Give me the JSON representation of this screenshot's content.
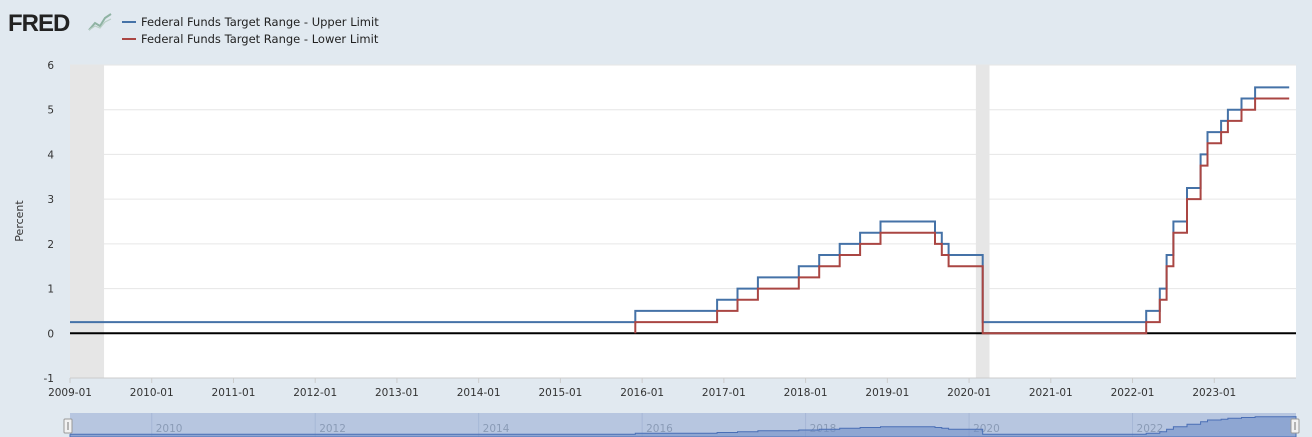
{
  "app": {
    "logo": "FRED",
    "logo_icon": "line-chart-icon"
  },
  "chart_data": {
    "type": "line",
    "title": "",
    "xlabel": "",
    "ylabel": "Percent",
    "ylim": [
      -1,
      6
    ],
    "yticks": [
      -1,
      0,
      1,
      2,
      3,
      4,
      5,
      6
    ],
    "xlim": [
      "2009-01",
      "2023-12"
    ],
    "xticks": [
      "2009-01",
      "2010-01",
      "2011-01",
      "2012-01",
      "2013-01",
      "2014-01",
      "2015-01",
      "2016-01",
      "2017-01",
      "2018-01",
      "2019-01",
      "2020-01",
      "2021-01",
      "2022-01",
      "2023-01"
    ],
    "grid": true,
    "legend": "top-left",
    "recessions": [
      [
        "2009-01",
        "2009-06"
      ],
      [
        "2020-02",
        "2020-04"
      ]
    ],
    "navigator_labels": [
      "2010",
      "2012",
      "2014",
      "2016",
      "2018",
      "2020",
      "2022"
    ],
    "series": [
      {
        "name": "Federal Funds Target Range - Upper Limit",
        "color": "#4572a7",
        "steps": [
          [
            "2009-01",
            0.25
          ],
          [
            "2015-12",
            0.5
          ],
          [
            "2016-12",
            0.75
          ],
          [
            "2017-03",
            1.0
          ],
          [
            "2017-06",
            1.25
          ],
          [
            "2017-12",
            1.5
          ],
          [
            "2018-03",
            1.75
          ],
          [
            "2018-06",
            2.0
          ],
          [
            "2018-09",
            2.25
          ],
          [
            "2018-12",
            2.5
          ],
          [
            "2019-08",
            2.25
          ],
          [
            "2019-09",
            2.0
          ],
          [
            "2019-10",
            1.75
          ],
          [
            "2020-03",
            1.25
          ],
          [
            "2020-03",
            1.0
          ],
          [
            "2020-03",
            0.25
          ],
          [
            "2022-03",
            0.5
          ],
          [
            "2022-05",
            1.0
          ],
          [
            "2022-06",
            1.75
          ],
          [
            "2022-07",
            2.5
          ],
          [
            "2022-09",
            3.25
          ],
          [
            "2022-11",
            4.0
          ],
          [
            "2022-12",
            4.5
          ],
          [
            "2023-02",
            4.75
          ],
          [
            "2023-03",
            5.0
          ],
          [
            "2023-05",
            5.25
          ],
          [
            "2023-07",
            5.5
          ],
          [
            "2023-12",
            5.5
          ]
        ]
      },
      {
        "name": "Federal Funds Target Range - Lower Limit",
        "color": "#aa4643",
        "steps": [
          [
            "2015-12",
            0.0
          ],
          [
            "2015-12",
            0.25
          ],
          [
            "2016-12",
            0.5
          ],
          [
            "2017-03",
            0.75
          ],
          [
            "2017-06",
            1.0
          ],
          [
            "2017-12",
            1.25
          ],
          [
            "2018-03",
            1.5
          ],
          [
            "2018-06",
            1.75
          ],
          [
            "2018-09",
            2.0
          ],
          [
            "2018-12",
            2.25
          ],
          [
            "2019-08",
            2.0
          ],
          [
            "2019-09",
            1.75
          ],
          [
            "2019-10",
            1.5
          ],
          [
            "2020-03",
            1.0
          ],
          [
            "2020-03",
            0.0
          ],
          [
            "2022-03",
            0.0
          ],
          [
            "2022-03",
            0.25
          ],
          [
            "2022-05",
            0.75
          ],
          [
            "2022-06",
            1.5
          ],
          [
            "2022-07",
            2.25
          ],
          [
            "2022-09",
            3.0
          ],
          [
            "2022-11",
            3.75
          ],
          [
            "2022-12",
            4.25
          ],
          [
            "2023-02",
            4.5
          ],
          [
            "2023-03",
            4.75
          ],
          [
            "2023-05",
            5.0
          ],
          [
            "2023-07",
            5.25
          ],
          [
            "2023-12",
            5.25
          ]
        ]
      }
    ]
  }
}
